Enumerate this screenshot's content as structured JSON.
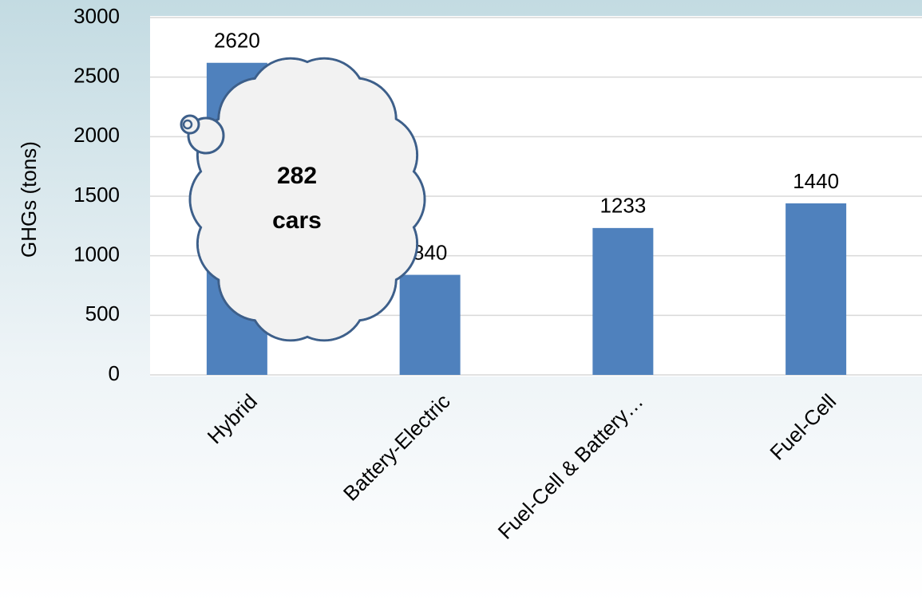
{
  "chart_data": {
    "type": "bar",
    "y_label": "GHGs (tons)",
    "categories": [
      "Hybrid",
      "Battery-Electric",
      "Fuel-Cell & Battery…",
      "Fuel-Cell"
    ],
    "values": [
      2620,
      840,
      1233,
      1440
    ],
    "color": "#4f81bd",
    "ylim": [
      0,
      3000
    ],
    "yticks": [
      0,
      500,
      1000,
      1500,
      2000,
      2500,
      3000
    ],
    "grid": true,
    "annotation": [
      "282",
      "cars"
    ]
  }
}
